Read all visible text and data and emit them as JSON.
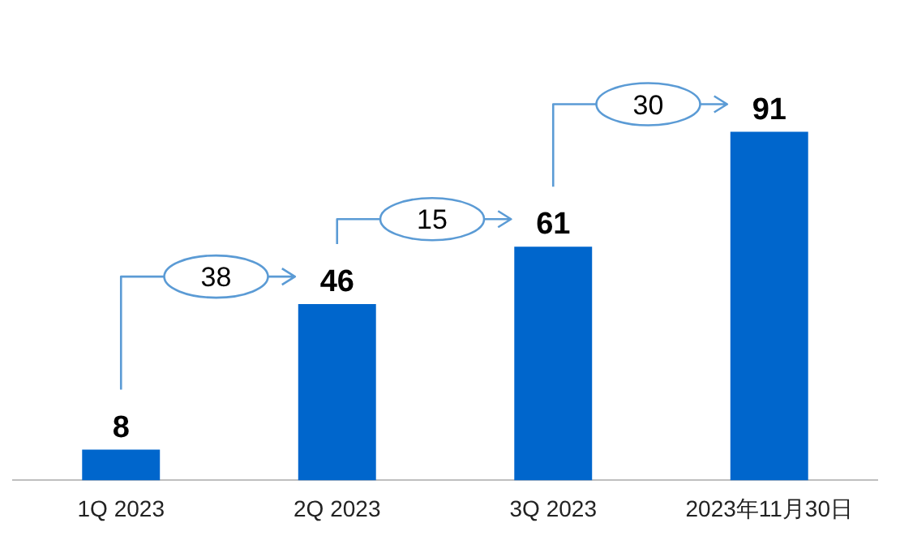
{
  "chart_data": {
    "type": "bar",
    "categories": [
      "1Q 2023",
      "2Q 2023",
      "3Q 2023",
      "2023年11月30日"
    ],
    "values": [
      8,
      46,
      61,
      91
    ],
    "color": "#0066cc",
    "data_labels": true,
    "grid": false,
    "legend": false,
    "tick_labels": "x",
    "annotations": [
      "38",
      "15",
      "30"
    ]
  }
}
